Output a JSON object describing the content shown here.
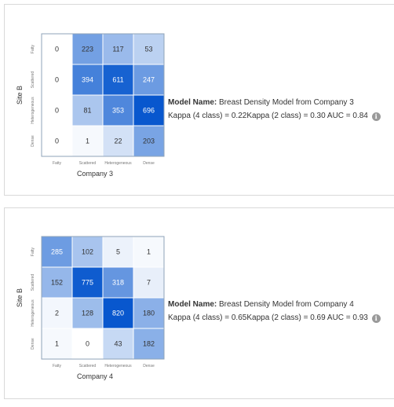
{
  "cards": [
    {
      "model_label": "Model Name:",
      "model_name": "Breast Density Model from Company 3",
      "metrics": "Kappa (4 class) = 0.22Kappa (2 class) = 0.30 AUC = 0.84",
      "info_icon": "info-icon"
    },
    {
      "model_label": "Model Name:",
      "model_name": "Breast Density Model from Company 4",
      "metrics": "Kappa (4 class) = 0.65Kappa (2 class) = 0.69 AUC = 0.93",
      "info_icon": "info-icon"
    }
  ],
  "colors": {
    "cell_low": "#ffffff",
    "cell_high": "#0052cc",
    "text_dark": "#333333",
    "text_light": "#ffffff"
  },
  "chart_data": [
    {
      "type": "heatmap",
      "xlabel": "Company 3",
      "ylabel": "Site B",
      "x_categories": [
        "Fatty",
        "Scattered",
        "Heterogeneous",
        "Dense"
      ],
      "y_categories": [
        "Fatty",
        "Scattered",
        "Heterogeneous",
        "Dense"
      ],
      "values": [
        [
          0,
          223,
          117,
          53
        ],
        [
          0,
          394,
          611,
          247
        ],
        [
          0,
          81,
          353,
          696
        ],
        [
          0,
          1,
          22,
          203
        ]
      ]
    },
    {
      "type": "heatmap",
      "xlabel": "Company 4",
      "ylabel": "Site B",
      "x_categories": [
        "Fatty",
        "Scattered",
        "Heterogeneous",
        "Dense"
      ],
      "y_categories": [
        "Fatty",
        "Scattered",
        "Heterogeneous",
        "Dense"
      ],
      "values": [
        [
          285,
          102,
          5,
          1
        ],
        [
          152,
          775,
          318,
          7
        ],
        [
          2,
          128,
          820,
          180
        ],
        [
          1,
          0,
          43,
          182
        ]
      ]
    }
  ]
}
